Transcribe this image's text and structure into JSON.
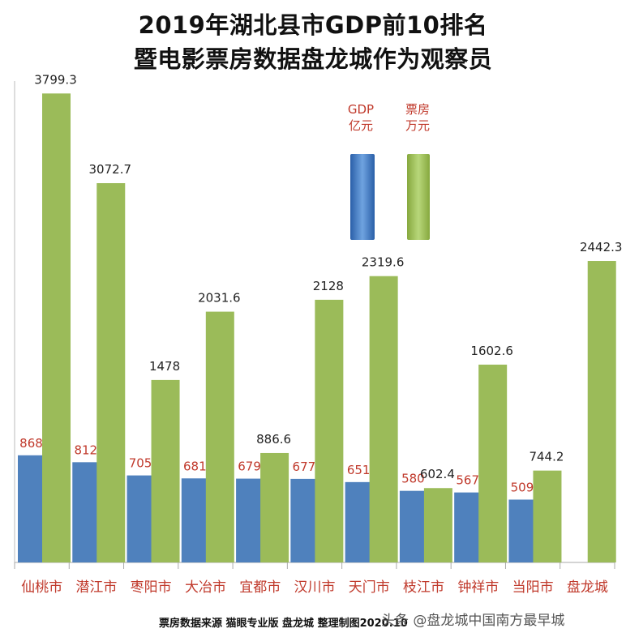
{
  "chart_data": {
    "type": "bar",
    "title_line1": "2019年湖北县市GDP前10排名",
    "title_line2": "暨电影票房数据盘龙城作为观察员",
    "categories": [
      "仙桃市",
      "潜江市",
      "枣阳市",
      "大冶市",
      "宜都市",
      "汉川市",
      "天门市",
      "枝江市",
      "钟祥市",
      "当阳市",
      "盘龙城"
    ],
    "series": [
      {
        "name": "GDP 亿元",
        "color": "#4f81bd",
        "values": [
          868,
          812,
          705,
          681,
          679,
          677,
          651,
          580,
          567,
          509,
          null
        ],
        "labels": [
          "868",
          "812",
          "705",
          "681",
          "679",
          "677",
          "651",
          "580",
          "567",
          "509",
          ""
        ]
      },
      {
        "name": "票房 万元",
        "color": "#9bbb59",
        "values": [
          3799.3,
          3072.7,
          1478,
          2031.6,
          886.6,
          2128,
          2319.6,
          602.4,
          1602.6,
          744.2,
          2442.3
        ],
        "labels": [
          "3799.3",
          "3072.7",
          "1478",
          "2031.6",
          "886.6",
          "2128",
          "2319.6",
          "602.4",
          "1602.6",
          "744.2",
          "2442.3"
        ]
      }
    ],
    "legend": {
      "gdp_line1": "GDP",
      "gdp_line2": "亿元",
      "box_line1": "票房",
      "box_line2": "万元",
      "placement": "top-center"
    },
    "ylim": [
      0,
      3900
    ],
    "grid": false,
    "label_colors": {
      "gdp_label": "#c0392b",
      "box_label": "#222222",
      "category": "#c0392b"
    }
  },
  "footer": {
    "source": "票房数据来源 猫眼专业版 盘龙城 整理制图2020.10",
    "watermark": "头条 @盘龙城中国南方最早城"
  }
}
